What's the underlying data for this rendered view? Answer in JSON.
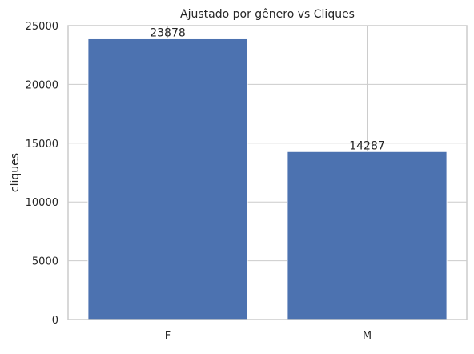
{
  "chart_data": {
    "type": "bar",
    "title": "Ajustado por gênero vs Cliques",
    "xlabel": "",
    "ylabel": "cliques",
    "categories": [
      "F",
      "M"
    ],
    "values": [
      23878,
      14287
    ],
    "data_labels": [
      "23878",
      "14287"
    ],
    "ylim": [
      0,
      25000
    ],
    "yticks": [
      0,
      5000,
      10000,
      15000,
      20000,
      25000
    ],
    "ytick_labels": [
      "0",
      "5000",
      "10000",
      "15000",
      "20000",
      "25000"
    ],
    "grid": true,
    "colors": {
      "bar": "#4c72b0",
      "grid": "#cccccc",
      "spine": "#cccccc",
      "background": "#ffffff"
    }
  }
}
